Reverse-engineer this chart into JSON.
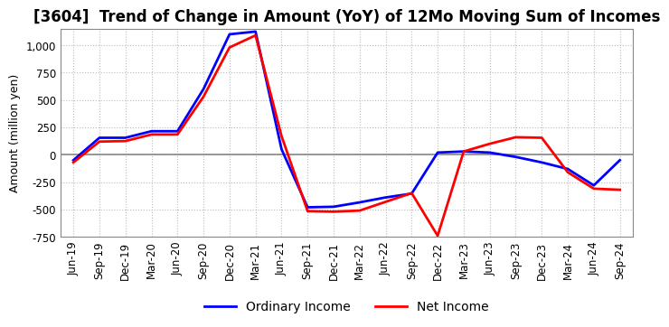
{
  "title": "[3604]  Trend of Change in Amount (YoY) of 12Mo Moving Sum of Incomes",
  "ylabel": "Amount (million yen)",
  "ylim": [
    -750,
    1150
  ],
  "yticks": [
    -750,
    -500,
    -250,
    0,
    250,
    500,
    750,
    1000
  ],
  "background_color": "#ffffff",
  "grid_color": "#bbbbbb",
  "x_labels": [
    "Jun-19",
    "Sep-19",
    "Dec-19",
    "Mar-20",
    "Jun-20",
    "Sep-20",
    "Dec-20",
    "Mar-21",
    "Jun-21",
    "Sep-21",
    "Dec-21",
    "Mar-22",
    "Jun-22",
    "Sep-22",
    "Dec-22",
    "Mar-23",
    "Jun-23",
    "Sep-23",
    "Dec-23",
    "Mar-24",
    "Jun-24",
    "Sep-24"
  ],
  "ordinary_income": [
    -50,
    155,
    155,
    215,
    215,
    600,
    1100,
    1125,
    50,
    -480,
    -475,
    -435,
    -390,
    -355,
    20,
    30,
    20,
    -20,
    -70,
    -130,
    -280,
    -50
  ],
  "net_income": [
    -70,
    120,
    125,
    185,
    185,
    530,
    980,
    1090,
    170,
    -515,
    -520,
    -510,
    -430,
    -350,
    -740,
    30,
    100,
    160,
    155,
    -160,
    -310,
    -320
  ],
  "ordinary_color": "#0000ff",
  "net_color": "#ff0000",
  "line_width": 2.0,
  "title_fontsize": 12,
  "tick_fontsize": 8.5,
  "legend_fontsize": 10
}
